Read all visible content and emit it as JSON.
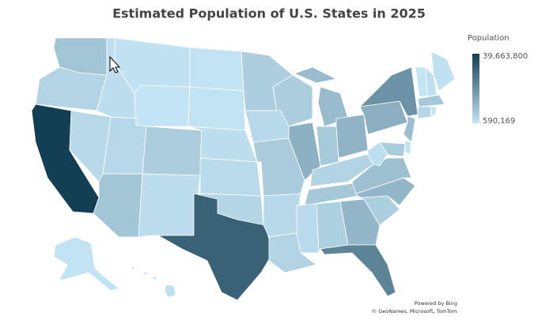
{
  "chart_data": {
    "type": "choropleth",
    "title": "Estimated Population of U.S. States in 2025",
    "legend_title": "Population",
    "colors": [
      "#c3e4f4",
      "#133f55"
    ],
    "colorbar_ticks": [
      {
        "value": 590169,
        "label": "590,169"
      },
      {
        "value": 39663800,
        "label": "39,663,800"
      }
    ],
    "values": [
      8000000,
      4300000,
      39663800,
      2000000,
      1140000,
      590169,
      3300000,
      3500000,
      7600000,
      6000000,
      2130000,
      800000,
      920000,
      2000000,
      2990000,
      4100000,
      31300000,
      5800000,
      3240000,
      6250000,
      3100000,
      4600000,
      5950000,
      12700000,
      10100000,
      6950000,
      11900000,
      4600000,
      7300000,
      2940000,
      5200000,
      11300000,
      23400000,
      5600000,
      11200000,
      8900000,
      1770000,
      13100000,
      19900000,
      9500000,
      6300000,
      1050000,
      1410000,
      1420000,
      650000,
      7200000,
      3700000,
      1120000,
      740000,
      1450000
    ],
    "credits": [
      "Powered by Bing",
      "© GeoNames, Microsoft, TomTom"
    ]
  }
}
